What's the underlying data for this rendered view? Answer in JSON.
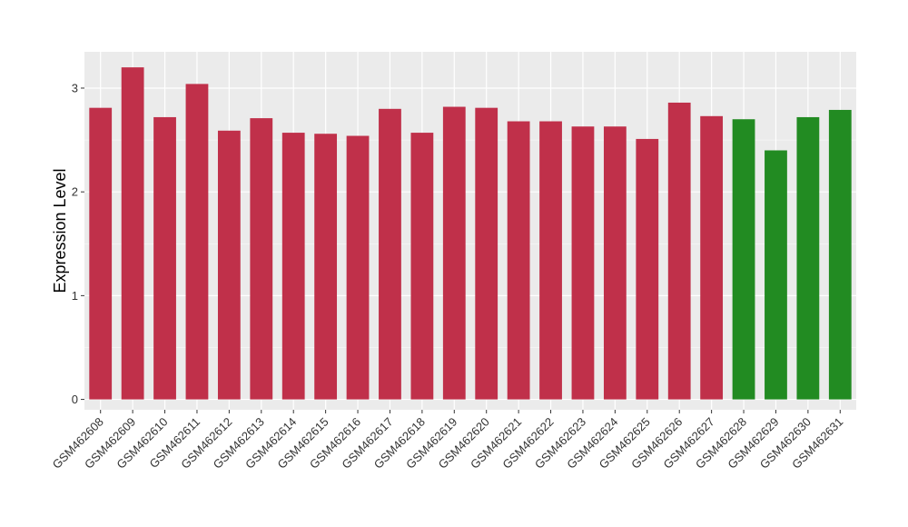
{
  "chart_data": {
    "type": "bar",
    "title": "",
    "xlabel": "",
    "ylabel": "Expression Level",
    "ylim": [
      -0.1,
      3.35
    ],
    "yticks": [
      0,
      1,
      2,
      3
    ],
    "grid": true,
    "legend": "none",
    "categories": [
      "GSM462608",
      "GSM462609",
      "GSM462610",
      "GSM462611",
      "GSM462612",
      "GSM462613",
      "GSM462614",
      "GSM462615",
      "GSM462616",
      "GSM462617",
      "GSM462618",
      "GSM462619",
      "GSM462620",
      "GSM462621",
      "GSM462622",
      "GSM462623",
      "GSM462624",
      "GSM462625",
      "GSM462626",
      "GSM462627",
      "GSM462628",
      "GSM462629",
      "GSM462630",
      "GSM462631"
    ],
    "values": [
      2.81,
      3.2,
      2.72,
      3.04,
      2.59,
      2.71,
      2.57,
      2.56,
      2.54,
      2.8,
      2.57,
      2.82,
      2.81,
      2.68,
      2.68,
      2.63,
      2.63,
      2.51,
      2.86,
      2.73,
      2.7,
      2.4,
      2.72,
      2.79
    ],
    "bar_colors": [
      "#c0304a",
      "#c0304a",
      "#c0304a",
      "#c0304a",
      "#c0304a",
      "#c0304a",
      "#c0304a",
      "#c0304a",
      "#c0304a",
      "#c0304a",
      "#c0304a",
      "#c0304a",
      "#c0304a",
      "#c0304a",
      "#c0304a",
      "#c0304a",
      "#c0304a",
      "#c0304a",
      "#c0304a",
      "#c0304a",
      "#228b22",
      "#228b22",
      "#228b22",
      "#228b22"
    ],
    "panel_background": "#ebebeb"
  }
}
